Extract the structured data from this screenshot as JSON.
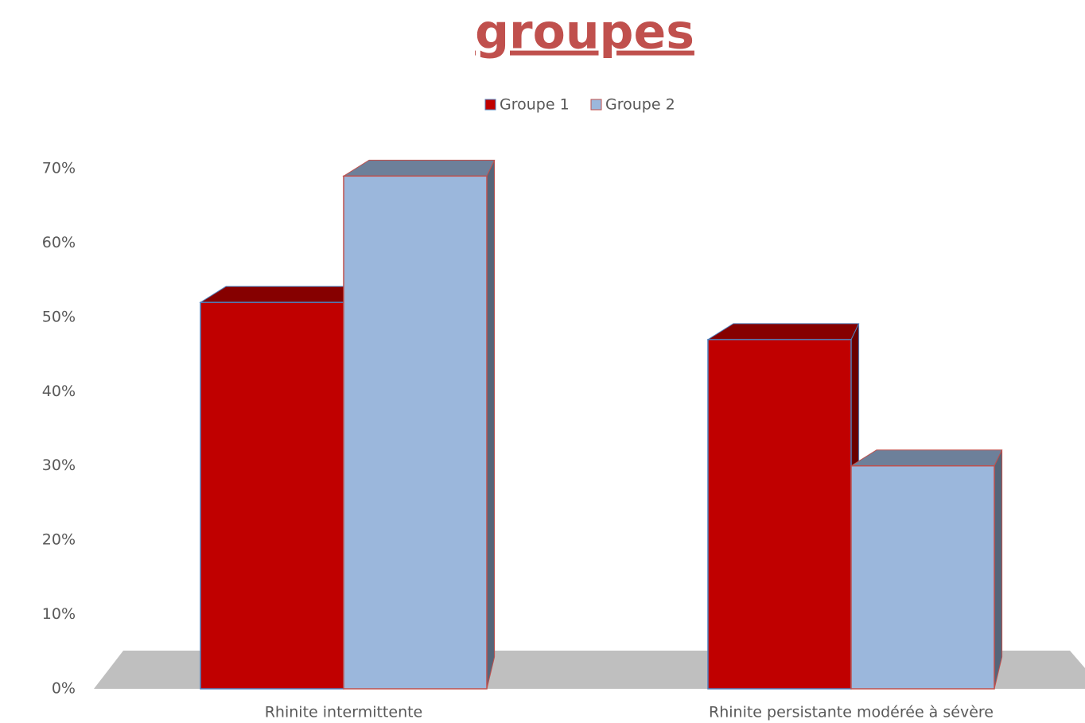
{
  "chart_data": {
    "type": "bar3d",
    "title": "groupes",
    "categories": [
      "Rhinite intermittente",
      "Rhinite persistante modérée à sévère"
    ],
    "series": [
      {
        "name": "Groupe 1",
        "color": "#c00000",
        "values": [
          52,
          47
        ]
      },
      {
        "name": "Groupe 2",
        "color": "#9bb7dc",
        "values": [
          69,
          30
        ]
      }
    ],
    "ylim": [
      0,
      70
    ],
    "yticks": [
      {
        "value": 0,
        "label": "0%"
      },
      {
        "value": 10,
        "label": "10%"
      },
      {
        "value": 20,
        "label": "20%"
      },
      {
        "value": 30,
        "label": "30%"
      },
      {
        "value": 40,
        "label": "40%"
      },
      {
        "value": 50,
        "label": "50%"
      },
      {
        "value": 60,
        "label": "60%"
      },
      {
        "value": 70,
        "label": "70%"
      }
    ],
    "legend": "top"
  }
}
